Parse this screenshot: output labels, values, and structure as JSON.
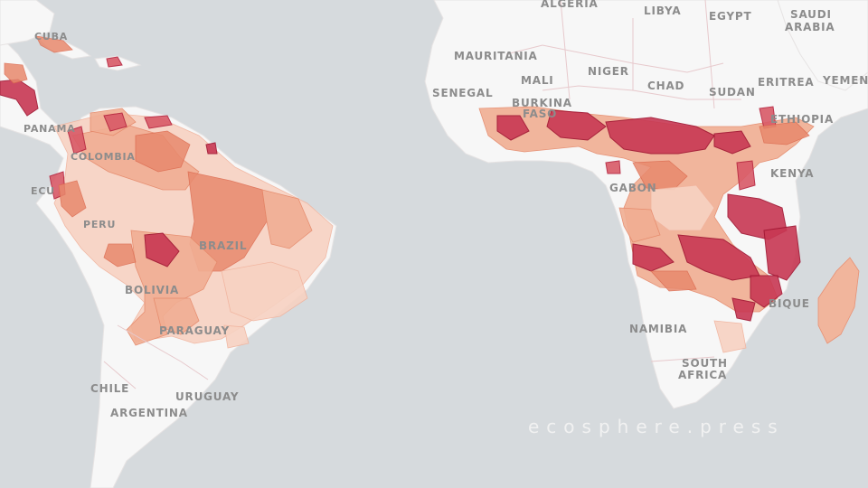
{
  "map": {
    "labels": {
      "algeria": "ALGERIA",
      "libya": "LIBYA",
      "egypt": "EGYPT",
      "saudi_1": "SAUDI",
      "saudi_2": "ARABIA",
      "mauritania": "MAURITANIA",
      "mali": "MALI",
      "niger": "NIGER",
      "chad": "CHAD",
      "sudan": "SUDAN",
      "eritrea": "ERITREA",
      "yemen": "YEMEN",
      "senegal": "SENEGAL",
      "burkina_1": "BURKINA",
      "burkina_2": "FASO",
      "ethiopia": "ETHIOPIA",
      "kenya": "KENYA",
      "gabon": "GABON",
      "namibia": "NAMIBIA",
      "south_africa_1": "SOUTH",
      "south_africa_2": "AFRICA",
      "mozambique": "BIQUE",
      "cuba": "CUBA",
      "panama": "PANAMA",
      "colombia": "COLOMBIA",
      "ecuador": "ECU",
      "peru": "PERU",
      "brazil": "BRAZIL",
      "bolivia": "BOLIVIA",
      "paraguay": "PARAGUAY",
      "chile": "CHILE",
      "uruguay": "URUGUAY",
      "argentina": "ARGENTINA"
    },
    "watermark": "ecosphere.press"
  },
  "colors": {
    "ocean": "#d6dadd",
    "land": "#f7f7f7",
    "shade_low": "#f7d2c2",
    "shade_mid": "#e8896d",
    "shade_high": "#c83853"
  }
}
